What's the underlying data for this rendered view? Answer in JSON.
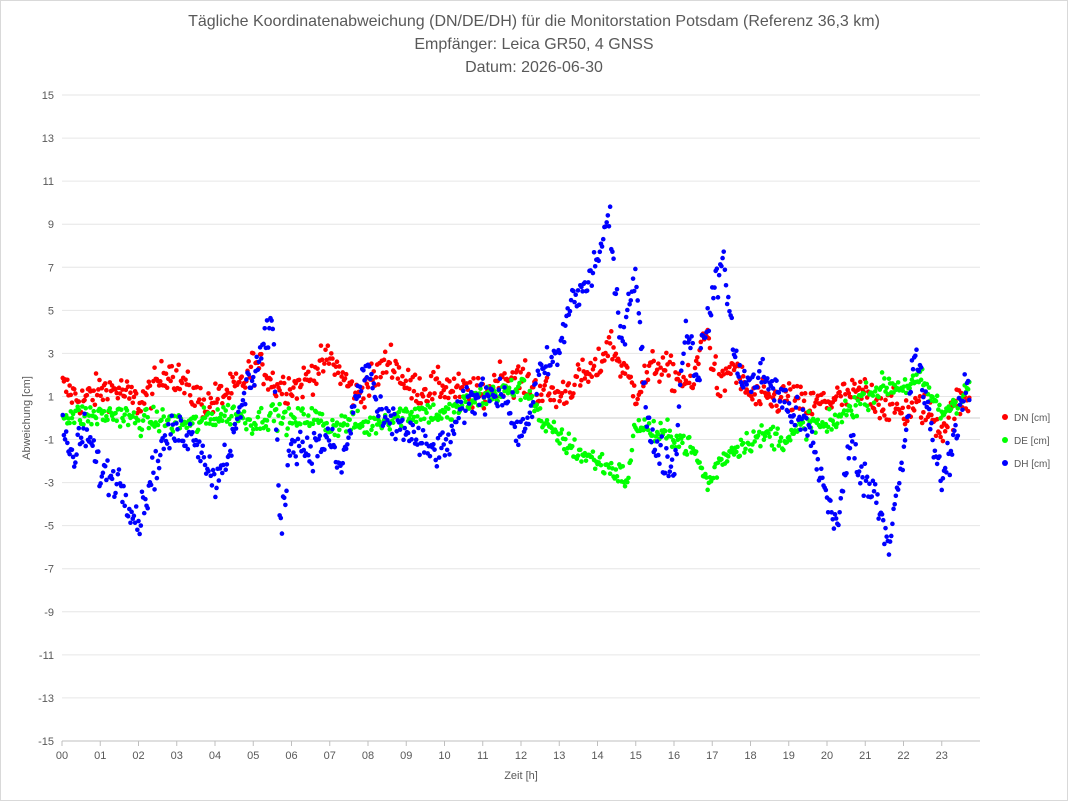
{
  "chart_data": {
    "type": "scatter",
    "title": [
      "Tägliche Koordinatenabweichung (DN/DE/DH) für die Monitorstation Potsdam (Referenz 36,3 km)",
      "Empfänger: Leica GR50, 4 GNSS",
      "Datum: 2026-06-30"
    ],
    "xlabel": "Zeit [h]",
    "ylabel": "Abweichung [cm]",
    "xlim": [
      0,
      24
    ],
    "ylim": [
      -15,
      15
    ],
    "x_ticks": [
      "00",
      "01",
      "02",
      "03",
      "04",
      "05",
      "06",
      "07",
      "08",
      "09",
      "10",
      "11",
      "12",
      "13",
      "14",
      "15",
      "16",
      "17",
      "18",
      "19",
      "20",
      "21",
      "22",
      "23"
    ],
    "y_ticks": [
      15,
      13,
      11,
      9,
      7,
      5,
      3,
      1,
      -1,
      -3,
      -5,
      -7,
      -9,
      -11,
      -13,
      -15
    ],
    "grid": "horizontal",
    "legend_position": "right",
    "sampling_interval_h": 0.03,
    "series": [
      {
        "name": "DN [cm]",
        "color": "#ff0000",
        "keypoints": [
          [
            0,
            1.5
          ],
          [
            0.5,
            0.8
          ],
          [
            1,
            1.3
          ],
          [
            1.5,
            1.3
          ],
          [
            2,
            0.7
          ],
          [
            2.3,
            1.2
          ],
          [
            2.8,
            2.3
          ],
          [
            3.3,
            1.3
          ],
          [
            3.8,
            0.6
          ],
          [
            4.2,
            1.1
          ],
          [
            4.7,
            1.5
          ],
          [
            5.0,
            2.5
          ],
          [
            5.3,
            2.2
          ],
          [
            5.6,
            1.5
          ],
          [
            6.2,
            1.5
          ],
          [
            6.7,
            2.3
          ],
          [
            7.0,
            2.8
          ],
          [
            7.3,
            2.0
          ],
          [
            7.7,
            1.0
          ],
          [
            8.2,
            1.9
          ],
          [
            8.6,
            2.8
          ],
          [
            9.0,
            1.5
          ],
          [
            9.5,
            1.3
          ],
          [
            10.0,
            1.5
          ],
          [
            10.5,
            1.2
          ],
          [
            11.0,
            1.0
          ],
          [
            11.5,
            2.0
          ],
          [
            12.0,
            1.8
          ],
          [
            12.5,
            1.3
          ],
          [
            13.0,
            1.0
          ],
          [
            13.5,
            1.8
          ],
          [
            14.0,
            2.2
          ],
          [
            14.3,
            3.6
          ],
          [
            14.6,
            2.5
          ],
          [
            15.0,
            1.2
          ],
          [
            15.5,
            2.5
          ],
          [
            16.0,
            2.0
          ],
          [
            16.5,
            1.5
          ],
          [
            16.8,
            4.3
          ],
          [
            17.2,
            1.2
          ],
          [
            17.5,
            2.5
          ],
          [
            18.0,
            1.0
          ],
          [
            18.5,
            0.8
          ],
          [
            19.0,
            1.0
          ],
          [
            19.5,
            0.5
          ],
          [
            20.0,
            0.8
          ],
          [
            20.5,
            1.0
          ],
          [
            21.0,
            1.2
          ],
          [
            21.5,
            0.6
          ],
          [
            22.0,
            0.3
          ],
          [
            22.5,
            0.5
          ],
          [
            23.0,
            -0.5
          ],
          [
            23.4,
            0.6
          ],
          [
            23.7,
            0.8
          ]
        ],
        "noise": 0.55
      },
      {
        "name": "DE [cm]",
        "color": "#00ff00",
        "keypoints": [
          [
            0,
            0.2
          ],
          [
            0.5,
            0.1
          ],
          [
            1,
            0.1
          ],
          [
            1.5,
            0.2
          ],
          [
            2,
            -0.2
          ],
          [
            2.5,
            -0.1
          ],
          [
            3,
            -0.2
          ],
          [
            3.5,
            -0.3
          ],
          [
            4,
            0.1
          ],
          [
            4.5,
            0.2
          ],
          [
            5,
            -0.2
          ],
          [
            5.5,
            0.2
          ],
          [
            6,
            -0.2
          ],
          [
            6.5,
            0.1
          ],
          [
            7,
            -0.4
          ],
          [
            7.5,
            -0.2
          ],
          [
            8,
            -0.4
          ],
          [
            8.5,
            0.0
          ],
          [
            9,
            0.2
          ],
          [
            9.5,
            0.3
          ],
          [
            10,
            0.1
          ],
          [
            10.5,
            0.6
          ],
          [
            11,
            1.0
          ],
          [
            11.5,
            1.2
          ],
          [
            12,
            1.4
          ],
          [
            12.3,
            1.0
          ],
          [
            12.6,
            -0.4
          ],
          [
            13,
            -0.9
          ],
          [
            13.5,
            -1.6
          ],
          [
            14,
            -2.0
          ],
          [
            14.5,
            -2.5
          ],
          [
            14.8,
            -2.9
          ],
          [
            15,
            -0.2
          ],
          [
            15.3,
            -0.5
          ],
          [
            15.6,
            -0.8
          ],
          [
            16,
            -0.8
          ],
          [
            16.5,
            -1.5
          ],
          [
            16.9,
            -3.1
          ],
          [
            17.2,
            -2.0
          ],
          [
            17.5,
            -1.5
          ],
          [
            18,
            -1.0
          ],
          [
            18.5,
            -0.8
          ],
          [
            19,
            -1.0
          ],
          [
            19.5,
            -0.2
          ],
          [
            20,
            -0.5
          ],
          [
            20.5,
            0.3
          ],
          [
            21,
            1.0
          ],
          [
            21.5,
            1.5
          ],
          [
            22,
            1.5
          ],
          [
            22.5,
            1.7
          ],
          [
            23,
            0.2
          ],
          [
            23.5,
            1.0
          ],
          [
            23.7,
            1.5
          ]
        ],
        "noise": 0.4
      },
      {
        "name": "DH [cm]",
        "color": "#0000ff",
        "keypoints": [
          [
            0,
            -0.5
          ],
          [
            0.3,
            -2.0
          ],
          [
            0.6,
            -0.5
          ],
          [
            1,
            -2.5
          ],
          [
            1.5,
            -2.9
          ],
          [
            2,
            -4.8
          ],
          [
            2.3,
            -3.0
          ],
          [
            2.7,
            -1.0
          ],
          [
            3,
            -0.6
          ],
          [
            3.5,
            -0.8
          ],
          [
            4,
            -3.0
          ],
          [
            4.2,
            -2.0
          ],
          [
            4.5,
            -1.0
          ],
          [
            4.8,
            1.3
          ],
          [
            5.1,
            2.5
          ],
          [
            5.5,
            4.7
          ],
          [
            5.7,
            -5.3
          ],
          [
            6,
            -1.0
          ],
          [
            6.5,
            -1.5
          ],
          [
            7,
            -1.0
          ],
          [
            7.3,
            -2.5
          ],
          [
            7.7,
            1.0
          ],
          [
            8,
            2.5
          ],
          [
            8.3,
            0.0
          ],
          [
            8.6,
            -0.3
          ],
          [
            9,
            -0.5
          ],
          [
            9.5,
            -1.5
          ],
          [
            10,
            -1.5
          ],
          [
            10.5,
            0.5
          ],
          [
            11,
            1.2
          ],
          [
            11.5,
            1.3
          ],
          [
            12,
            -1.0
          ],
          [
            12.5,
            2.0
          ],
          [
            13,
            3.0
          ],
          [
            13.3,
            5.5
          ],
          [
            13.7,
            6.0
          ],
          [
            14,
            7.5
          ],
          [
            14.3,
            9.2
          ],
          [
            14.6,
            3.5
          ],
          [
            15,
            7.0
          ],
          [
            15.3,
            -0.5
          ],
          [
            15.6,
            -1.5
          ],
          [
            16,
            -2.5
          ],
          [
            16.3,
            4.5
          ],
          [
            16.6,
            2.0
          ],
          [
            17,
            5.5
          ],
          [
            17.3,
            7.5
          ],
          [
            17.6,
            2.5
          ],
          [
            18,
            1.5
          ],
          [
            18.3,
            2.0
          ],
          [
            18.6,
            1.5
          ],
          [
            19,
            0.5
          ],
          [
            19.5,
            -0.5
          ],
          [
            20,
            -3.7
          ],
          [
            20.3,
            -5.0
          ],
          [
            20.6,
            -1.0
          ],
          [
            21,
            -3.0
          ],
          [
            21.3,
            -3.5
          ],
          [
            21.6,
            -5.8
          ],
          [
            22,
            -2.0
          ],
          [
            22.3,
            3.3
          ],
          [
            22.6,
            0.5
          ],
          [
            23,
            -3.0
          ],
          [
            23.3,
            -1.0
          ],
          [
            23.6,
            1.5
          ]
        ],
        "noise": 0.6
      }
    ]
  }
}
